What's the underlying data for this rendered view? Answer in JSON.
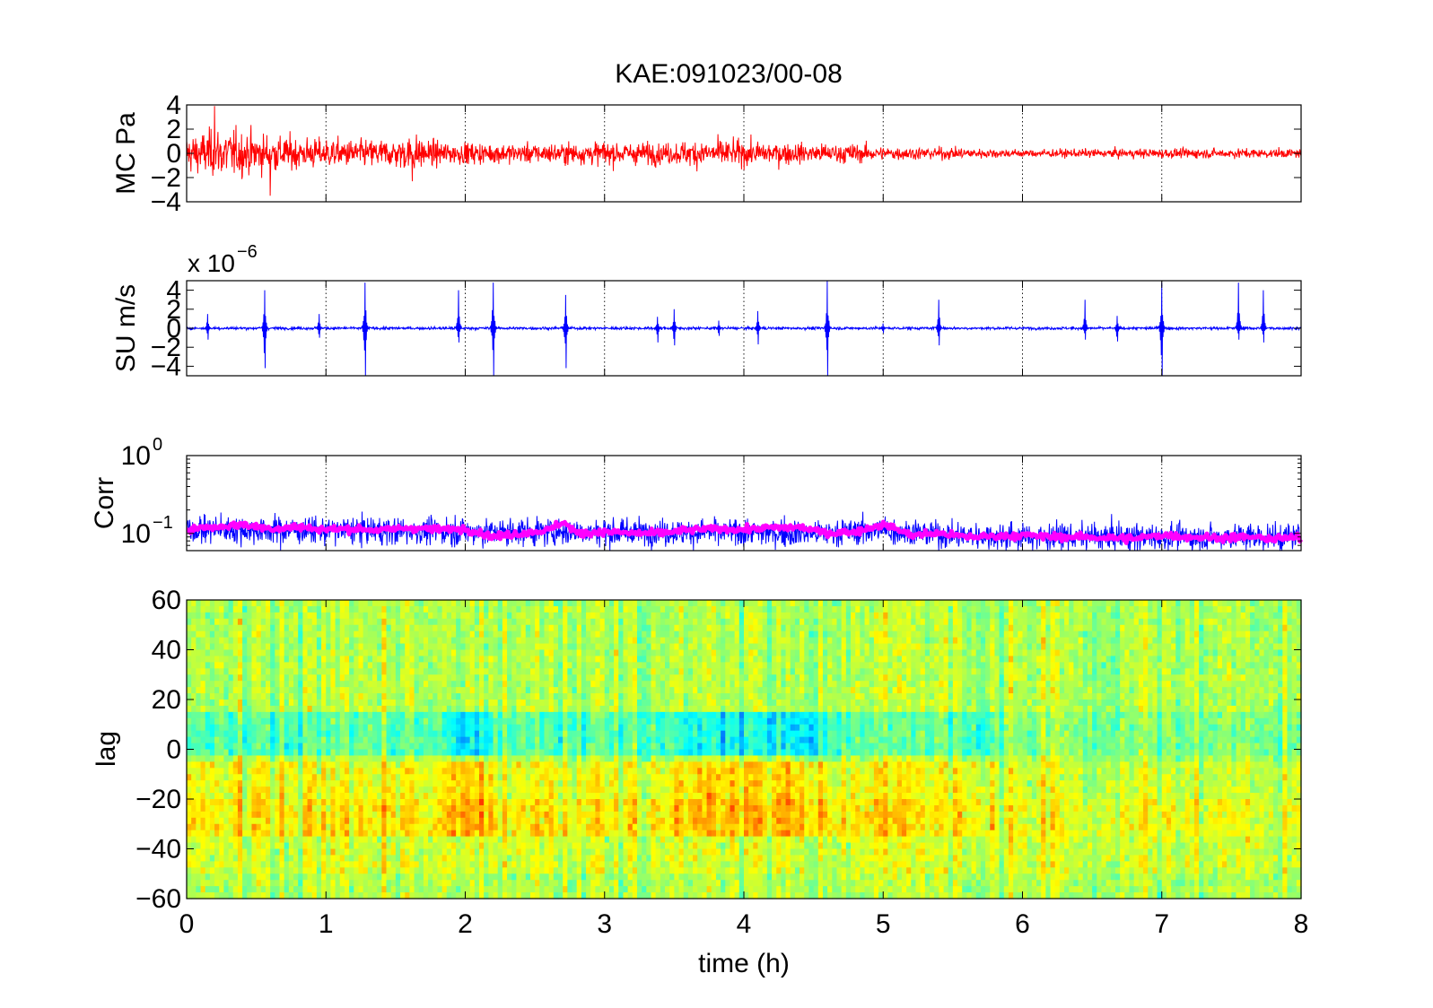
{
  "title": "KAE:091023/00-08",
  "colors": {
    "mc_trace": "#ff0000",
    "su_trace": "#0000ff",
    "corr_raw": "#0000ff",
    "corr_smooth": "#ff00ff",
    "axis": "#000000",
    "colormap": [
      "#00007f",
      "#0000ff",
      "#007fff",
      "#00ffff",
      "#7fff7f",
      "#ffff00",
      "#ff7f00",
      "#ff0000",
      "#7f0000"
    ]
  },
  "chart_data": [
    {
      "type": "line",
      "name": "mc",
      "ylabel": "MC Pa",
      "xlim": [
        0,
        8
      ],
      "ylim": [
        -4,
        4
      ],
      "yticks": [
        -4,
        -2,
        0,
        2,
        4
      ],
      "ytick_labels": [
        "−4",
        "−2",
        "0",
        "2",
        "4"
      ],
      "x_unit": "h",
      "grid": "x-dotted",
      "envelope": {
        "x": [
          0,
          0.25,
          0.5,
          0.75,
          1.0,
          1.25,
          1.5,
          1.65,
          1.75,
          2.0,
          2.5,
          3.0,
          3.5,
          3.7,
          4.0,
          4.5,
          4.8,
          5.0,
          5.5,
          6.0,
          6.5,
          7.0,
          7.5,
          8.0
        ],
        "amplitude": [
          1.9,
          2.6,
          2.1,
          1.7,
          1.5,
          1.4,
          1.5,
          1.9,
          1.3,
          1.1,
          1.0,
          1.2,
          1.1,
          1.5,
          1.3,
          1.0,
          1.0,
          0.7,
          0.6,
          0.4,
          0.45,
          0.5,
          0.5,
          0.45
        ]
      },
      "peaks": [
        [
          0.2,
          3.9
        ],
        [
          0.6,
          -3.5
        ],
        [
          1.62,
          2.7
        ],
        [
          1.62,
          -2.3
        ]
      ]
    },
    {
      "type": "line",
      "name": "su",
      "ylabel": "SU m/s",
      "exponent_label": "x 10",
      "exponent_power": "−6",
      "xlim": [
        0,
        8
      ],
      "ylim": [
        -5,
        5
      ],
      "yticks": [
        -4,
        -2,
        0,
        2,
        4
      ],
      "ytick_labels": [
        "−4",
        "−2",
        "0",
        "2",
        "4"
      ],
      "grid": "x-dotted",
      "base_amplitude": 0.2,
      "spikes": [
        [
          0.15,
          1.5,
          -1.2
        ],
        [
          0.56,
          4.0,
          -4.2
        ],
        [
          0.95,
          1.5,
          -1.0
        ],
        [
          1.28,
          4.8,
          -5.0
        ],
        [
          1.95,
          4.0,
          -1.5
        ],
        [
          2.2,
          4.8,
          -5.0
        ],
        [
          2.72,
          3.5,
          -4.2
        ],
        [
          3.38,
          1.2,
          -1.5
        ],
        [
          3.5,
          2.0,
          -1.8
        ],
        [
          3.82,
          0.8,
          -0.8
        ],
        [
          4.1,
          1.8,
          -1.7
        ],
        [
          4.6,
          5.0,
          -5.0
        ],
        [
          5.0,
          0.5,
          -0.5
        ],
        [
          5.4,
          3.0,
          -1.8
        ],
        [
          6.45,
          3.0,
          -1.2
        ],
        [
          6.68,
          1.3,
          -1.4
        ],
        [
          7.0,
          4.8,
          -5.0
        ],
        [
          7.55,
          4.8,
          -1.2
        ],
        [
          7.73,
          4.0,
          -1.5
        ]
      ]
    },
    {
      "type": "line",
      "name": "corr",
      "ylabel": "Corr",
      "yscale": "log",
      "ylim": [
        0.06,
        1
      ],
      "ytick_labels": [
        {
          "base": "10",
          "exp": "0",
          "value": 1
        },
        {
          "base": "10",
          "exp": "−1",
          "value": 0.1
        }
      ],
      "xlim": [
        0,
        8
      ],
      "grid": "x-dotted",
      "raw_mean": {
        "x": [
          0,
          0.5,
          1.0,
          1.5,
          2.0,
          2.5,
          3.0,
          3.5,
          4.0,
          4.5,
          5.0,
          5.5,
          6.0,
          6.5,
          7.0,
          7.5,
          8.0
        ],
        "y": [
          0.115,
          0.11,
          0.11,
          0.108,
          0.105,
          0.105,
          0.104,
          0.104,
          0.104,
          0.1,
          0.11,
          0.095,
          0.09,
          0.09,
          0.09,
          0.09,
          0.09
        ]
      },
      "smooth": {
        "x": [
          0,
          0.2,
          0.4,
          0.6,
          0.8,
          1.0,
          1.2,
          1.4,
          1.6,
          1.8,
          2.0,
          2.2,
          2.4,
          2.6,
          2.7,
          2.8,
          3.0,
          3.2,
          3.4,
          3.6,
          3.8,
          4.0,
          4.2,
          4.4,
          4.6,
          4.8,
          5.0,
          5.2,
          5.4,
          5.6,
          5.8,
          6.0,
          6.2,
          6.4,
          6.6,
          6.8,
          7.0,
          7.2,
          7.4,
          7.6,
          7.8,
          8.0
        ],
        "y": [
          0.115,
          0.12,
          0.13,
          0.115,
          0.12,
          0.112,
          0.115,
          0.11,
          0.118,
          0.112,
          0.115,
          0.09,
          0.1,
          0.11,
          0.14,
          0.1,
          0.105,
          0.1,
          0.1,
          0.11,
          0.115,
          0.112,
          0.118,
          0.12,
          0.1,
          0.105,
          0.13,
          0.095,
          0.1,
          0.09,
          0.092,
          0.095,
          0.09,
          0.09,
          0.088,
          0.085,
          0.095,
          0.09,
          0.088,
          0.09,
          0.085,
          0.088
        ]
      }
    },
    {
      "type": "heatmap",
      "name": "lag",
      "ylabel": "lag",
      "xlabel": "time (h)",
      "xlim": [
        0,
        8
      ],
      "ylim": [
        -60,
        60
      ],
      "xticks": [
        0,
        1,
        2,
        3,
        4,
        5,
        6,
        7,
        8
      ],
      "xtick_labels": [
        "0",
        "1",
        "2",
        "3",
        "4",
        "5",
        "6",
        "7",
        "8"
      ],
      "yticks": [
        -60,
        -40,
        -20,
        0,
        20,
        40,
        60
      ],
      "ytick_labels": [
        "−60",
        "−40",
        "−20",
        "0",
        "20",
        "40",
        "60"
      ],
      "features": {
        "positive_lag_band": [
          2,
          10
        ],
        "negative_lag_band": [
          -35,
          -5
        ],
        "strong_intervals_h": [
          [
            1.85,
            2.2
          ],
          [
            3.5,
            4.6
          ]
        ],
        "moderate_intervals_h": [
          [
            0.0,
            1.85
          ],
          [
            2.2,
            3.5
          ],
          [
            4.6,
            5.8
          ]
        ],
        "weak_intervals_h": [
          [
            5.8,
            8.0
          ]
        ]
      }
    }
  ]
}
